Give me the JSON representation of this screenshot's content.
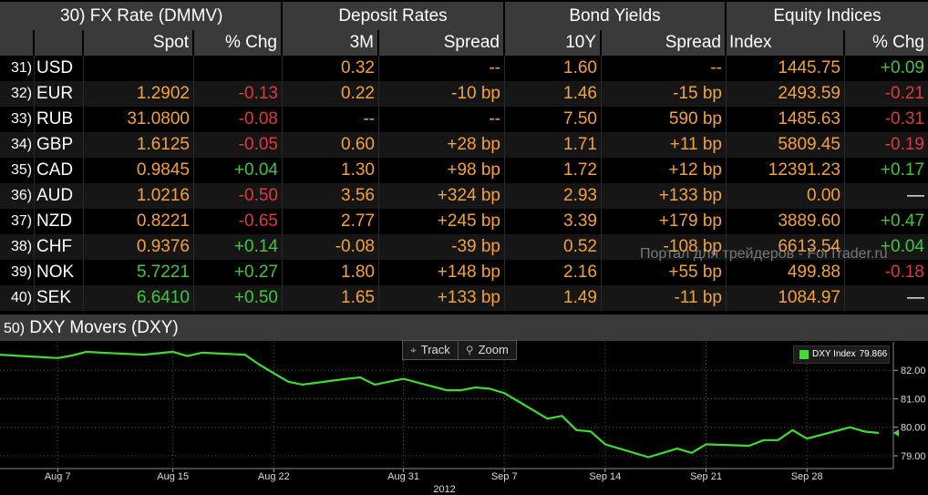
{
  "table": {
    "group_headers": [
      "30) FX Rate (DMMV)",
      "Deposit Rates",
      "Bond Yields",
      "Equity Indices"
    ],
    "column_headers": [
      "Spot",
      "% Chg",
      "3M",
      "Spread",
      "10Y",
      "Spread",
      "Index",
      "% Chg"
    ],
    "rows": [
      {
        "num": "31)",
        "ccy": "USD",
        "spot": "",
        "spot_chg": "",
        "dep3m": "0.32",
        "dep_spread": "--",
        "y10": "1.60",
        "bond_spread": "--",
        "index": "1445.75",
        "idx_chg": "+0.09"
      },
      {
        "num": "32)",
        "ccy": "EUR",
        "spot": "1.2902",
        "spot_chg": "-0.13",
        "dep3m": "0.22",
        "dep_spread": "-10 bp",
        "y10": "1.46",
        "bond_spread": "-15 bp",
        "index": "2493.59",
        "idx_chg": "-0.21"
      },
      {
        "num": "33)",
        "ccy": "RUB",
        "spot": "31.0800",
        "spot_chg": "-0.08",
        "dep3m": "--",
        "dep_spread": "--",
        "y10": "7.50",
        "bond_spread": "590 bp",
        "index": "1485.63",
        "idx_chg": "-0.31"
      },
      {
        "num": "34)",
        "ccy": "GBP",
        "spot": "1.6125",
        "spot_chg": "-0.05",
        "dep3m": "0.60",
        "dep_spread": "+28 bp",
        "y10": "1.71",
        "bond_spread": "+11 bp",
        "index": "5809.45",
        "idx_chg": "-0.19"
      },
      {
        "num": "35)",
        "ccy": "CAD",
        "spot": "0.9845",
        "spot_chg": "+0.04",
        "dep3m": "1.30",
        "dep_spread": "+98 bp",
        "y10": "1.72",
        "bond_spread": "+12 bp",
        "index": "12391.23",
        "idx_chg": "+0.17"
      },
      {
        "num": "36)",
        "ccy": "AUD",
        "spot": "1.0216",
        "spot_chg": "-0.50",
        "dep3m": "3.56",
        "dep_spread": "+324 bp",
        "y10": "2.93",
        "bond_spread": "+133 bp",
        "index": "0.00",
        "idx_chg": "—"
      },
      {
        "num": "37)",
        "ccy": "NZD",
        "spot": "0.8221",
        "spot_chg": "-0.65",
        "dep3m": "2.77",
        "dep_spread": "+245 bp",
        "y10": "3.39",
        "bond_spread": "+179 bp",
        "index": "3889.60",
        "idx_chg": "+0.47"
      },
      {
        "num": "38)",
        "ccy": "CHF",
        "spot": "0.9376",
        "spot_chg": "+0.14",
        "dep3m": "-0.08",
        "dep_spread": "-39 bp",
        "y10": "0.52",
        "bond_spread": "-108 bp",
        "index": "6613.54",
        "idx_chg": "+0.04"
      },
      {
        "num": "39)",
        "ccy": "NOK",
        "spot": "5.7221",
        "spot_chg": "+0.27",
        "dep3m": "1.80",
        "dep_spread": "+148 bp",
        "y10": "2.16",
        "bond_spread": "+55 bp",
        "index": "499.88",
        "idx_chg": "-0.18"
      },
      {
        "num": "40)",
        "ccy": "SEK",
        "spot": "6.6410",
        "spot_chg": "+0.50",
        "dep3m": "1.65",
        "dep_spread": "+133 bp",
        "y10": "1.49",
        "bond_spread": "-11 bp",
        "index": "1084.97",
        "idx_chg": "—"
      }
    ]
  },
  "watermark": "Портал для трейдеров - ForTrader.ru",
  "panel": {
    "num": "50)",
    "title": "DXY Movers (DXY)",
    "tools": [
      {
        "icon": "crosshair-icon",
        "label": "Track"
      },
      {
        "icon": "magnifier-icon",
        "label": "Zoom"
      }
    ],
    "legend": {
      "name": "DXY Index",
      "value": "79.866",
      "color": "#3edc2e"
    }
  },
  "colors": {
    "amber": "#f4a238",
    "positive": "#3ec73e",
    "negative": "#e0393d",
    "header_bg": "#3a3a3a",
    "line": "#3edc2e"
  },
  "chart_data": {
    "type": "line",
    "x_tick_labels": [
      "Aug 7",
      "Aug 15",
      "Aug 22",
      "Aug 31",
      "Sep 7",
      "Sep 14",
      "Sep 21",
      "Sep 28"
    ],
    "x_year_label": "2012",
    "y_tick_labels": [
      "82.00",
      "81.00",
      "80.00",
      "79.00"
    ],
    "ylim": [
      78.55,
      83.0
    ],
    "x_dates": [
      "2012-08-03",
      "2012-08-06",
      "2012-08-07",
      "2012-08-08",
      "2012-08-09",
      "2012-08-10",
      "2012-08-13",
      "2012-08-14",
      "2012-08-15",
      "2012-08-16",
      "2012-08-17",
      "2012-08-20",
      "2012-08-21",
      "2012-08-22",
      "2012-08-23",
      "2012-08-24",
      "2012-08-27",
      "2012-08-28",
      "2012-08-29",
      "2012-08-30",
      "2012-08-31",
      "2012-09-03",
      "2012-09-04",
      "2012-09-05",
      "2012-09-06",
      "2012-09-07",
      "2012-09-10",
      "2012-09-11",
      "2012-09-12",
      "2012-09-13",
      "2012-09-14",
      "2012-09-17",
      "2012-09-18",
      "2012-09-19",
      "2012-09-20",
      "2012-09-21",
      "2012-09-24",
      "2012-09-25",
      "2012-09-26",
      "2012-09-27",
      "2012-09-28",
      "2012-10-01",
      "2012-10-02",
      "2012-10-03"
    ],
    "series": [
      {
        "values": [
          82.55,
          82.46,
          82.43,
          82.52,
          82.65,
          82.62,
          82.55,
          82.6,
          82.65,
          82.5,
          82.62,
          82.55,
          82.2,
          81.9,
          81.6,
          81.5,
          81.7,
          81.75,
          81.5,
          81.6,
          81.7,
          81.3,
          81.3,
          81.4,
          81.35,
          81.2,
          80.3,
          80.4,
          79.9,
          79.85,
          79.4,
          78.95,
          79.1,
          79.25,
          79.1,
          79.4,
          79.35,
          79.55,
          79.55,
          79.9,
          79.6,
          80.0,
          79.85,
          79.8
        ]
      }
    ]
  }
}
